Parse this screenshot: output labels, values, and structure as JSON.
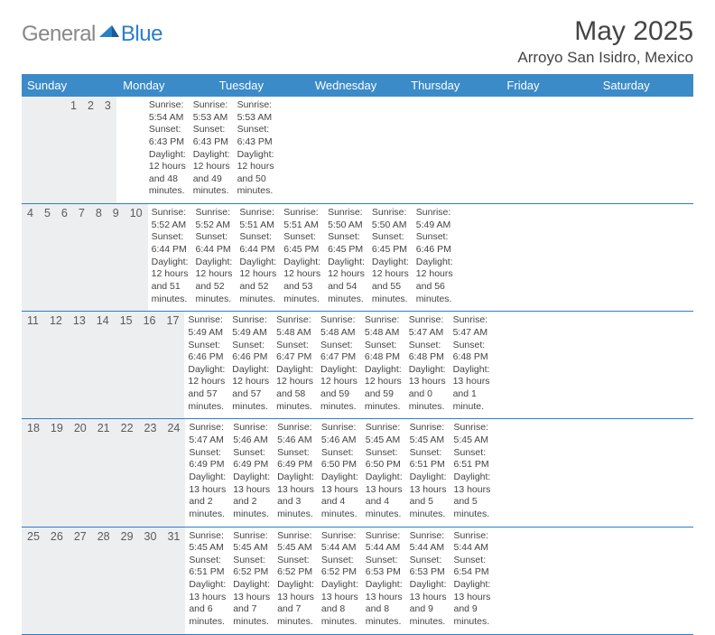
{
  "brand": {
    "text_gray": "General",
    "text_blue": "Blue"
  },
  "title": "May 2025",
  "location": "Arroyo San Isidro, Mexico",
  "colors": {
    "header_bg": "#3b8bc9",
    "header_text": "#ffffff",
    "daynum_bg": "#eceef0",
    "row_border": "#2a7fc9",
    "body_text": "#444444",
    "logo_gray": "#888888",
    "logo_blue": "#2a7fc9",
    "page_bg": "#ffffff"
  },
  "fonts": {
    "title_size_pt": 30,
    "location_size_pt": 17,
    "weekday_size_pt": 13,
    "daynum_size_pt": 12.5,
    "body_size_pt": 10.5
  },
  "weekdays": [
    "Sunday",
    "Monday",
    "Tuesday",
    "Wednesday",
    "Thursday",
    "Friday",
    "Saturday"
  ],
  "weeks": [
    {
      "nums": [
        "",
        "",
        "",
        "",
        "1",
        "2",
        "3"
      ],
      "cells": [
        null,
        null,
        null,
        null,
        {
          "sunrise": "Sunrise: 5:54 AM",
          "sunset": "Sunset: 6:43 PM",
          "day1": "Daylight: 12 hours",
          "day2": "and 48 minutes."
        },
        {
          "sunrise": "Sunrise: 5:53 AM",
          "sunset": "Sunset: 6:43 PM",
          "day1": "Daylight: 12 hours",
          "day2": "and 49 minutes."
        },
        {
          "sunrise": "Sunrise: 5:53 AM",
          "sunset": "Sunset: 6:43 PM",
          "day1": "Daylight: 12 hours",
          "day2": "and 50 minutes."
        }
      ]
    },
    {
      "nums": [
        "4",
        "5",
        "6",
        "7",
        "8",
        "9",
        "10"
      ],
      "cells": [
        {
          "sunrise": "Sunrise: 5:52 AM",
          "sunset": "Sunset: 6:44 PM",
          "day1": "Daylight: 12 hours",
          "day2": "and 51 minutes."
        },
        {
          "sunrise": "Sunrise: 5:52 AM",
          "sunset": "Sunset: 6:44 PM",
          "day1": "Daylight: 12 hours",
          "day2": "and 52 minutes."
        },
        {
          "sunrise": "Sunrise: 5:51 AM",
          "sunset": "Sunset: 6:44 PM",
          "day1": "Daylight: 12 hours",
          "day2": "and 52 minutes."
        },
        {
          "sunrise": "Sunrise: 5:51 AM",
          "sunset": "Sunset: 6:45 PM",
          "day1": "Daylight: 12 hours",
          "day2": "and 53 minutes."
        },
        {
          "sunrise": "Sunrise: 5:50 AM",
          "sunset": "Sunset: 6:45 PM",
          "day1": "Daylight: 12 hours",
          "day2": "and 54 minutes."
        },
        {
          "sunrise": "Sunrise: 5:50 AM",
          "sunset": "Sunset: 6:45 PM",
          "day1": "Daylight: 12 hours",
          "day2": "and 55 minutes."
        },
        {
          "sunrise": "Sunrise: 5:49 AM",
          "sunset": "Sunset: 6:46 PM",
          "day1": "Daylight: 12 hours",
          "day2": "and 56 minutes."
        }
      ]
    },
    {
      "nums": [
        "11",
        "12",
        "13",
        "14",
        "15",
        "16",
        "17"
      ],
      "cells": [
        {
          "sunrise": "Sunrise: 5:49 AM",
          "sunset": "Sunset: 6:46 PM",
          "day1": "Daylight: 12 hours",
          "day2": "and 57 minutes."
        },
        {
          "sunrise": "Sunrise: 5:49 AM",
          "sunset": "Sunset: 6:46 PM",
          "day1": "Daylight: 12 hours",
          "day2": "and 57 minutes."
        },
        {
          "sunrise": "Sunrise: 5:48 AM",
          "sunset": "Sunset: 6:47 PM",
          "day1": "Daylight: 12 hours",
          "day2": "and 58 minutes."
        },
        {
          "sunrise": "Sunrise: 5:48 AM",
          "sunset": "Sunset: 6:47 PM",
          "day1": "Daylight: 12 hours",
          "day2": "and 59 minutes."
        },
        {
          "sunrise": "Sunrise: 5:48 AM",
          "sunset": "Sunset: 6:48 PM",
          "day1": "Daylight: 12 hours",
          "day2": "and 59 minutes."
        },
        {
          "sunrise": "Sunrise: 5:47 AM",
          "sunset": "Sunset: 6:48 PM",
          "day1": "Daylight: 13 hours",
          "day2": "and 0 minutes."
        },
        {
          "sunrise": "Sunrise: 5:47 AM",
          "sunset": "Sunset: 6:48 PM",
          "day1": "Daylight: 13 hours",
          "day2": "and 1 minute."
        }
      ]
    },
    {
      "nums": [
        "18",
        "19",
        "20",
        "21",
        "22",
        "23",
        "24"
      ],
      "cells": [
        {
          "sunrise": "Sunrise: 5:47 AM",
          "sunset": "Sunset: 6:49 PM",
          "day1": "Daylight: 13 hours",
          "day2": "and 2 minutes."
        },
        {
          "sunrise": "Sunrise: 5:46 AM",
          "sunset": "Sunset: 6:49 PM",
          "day1": "Daylight: 13 hours",
          "day2": "and 2 minutes."
        },
        {
          "sunrise": "Sunrise: 5:46 AM",
          "sunset": "Sunset: 6:49 PM",
          "day1": "Daylight: 13 hours",
          "day2": "and 3 minutes."
        },
        {
          "sunrise": "Sunrise: 5:46 AM",
          "sunset": "Sunset: 6:50 PM",
          "day1": "Daylight: 13 hours",
          "day2": "and 4 minutes."
        },
        {
          "sunrise": "Sunrise: 5:45 AM",
          "sunset": "Sunset: 6:50 PM",
          "day1": "Daylight: 13 hours",
          "day2": "and 4 minutes."
        },
        {
          "sunrise": "Sunrise: 5:45 AM",
          "sunset": "Sunset: 6:51 PM",
          "day1": "Daylight: 13 hours",
          "day2": "and 5 minutes."
        },
        {
          "sunrise": "Sunrise: 5:45 AM",
          "sunset": "Sunset: 6:51 PM",
          "day1": "Daylight: 13 hours",
          "day2": "and 5 minutes."
        }
      ]
    },
    {
      "nums": [
        "25",
        "26",
        "27",
        "28",
        "29",
        "30",
        "31"
      ],
      "cells": [
        {
          "sunrise": "Sunrise: 5:45 AM",
          "sunset": "Sunset: 6:51 PM",
          "day1": "Daylight: 13 hours",
          "day2": "and 6 minutes."
        },
        {
          "sunrise": "Sunrise: 5:45 AM",
          "sunset": "Sunset: 6:52 PM",
          "day1": "Daylight: 13 hours",
          "day2": "and 7 minutes."
        },
        {
          "sunrise": "Sunrise: 5:45 AM",
          "sunset": "Sunset: 6:52 PM",
          "day1": "Daylight: 13 hours",
          "day2": "and 7 minutes."
        },
        {
          "sunrise": "Sunrise: 5:44 AM",
          "sunset": "Sunset: 6:52 PM",
          "day1": "Daylight: 13 hours",
          "day2": "and 8 minutes."
        },
        {
          "sunrise": "Sunrise: 5:44 AM",
          "sunset": "Sunset: 6:53 PM",
          "day1": "Daylight: 13 hours",
          "day2": "and 8 minutes."
        },
        {
          "sunrise": "Sunrise: 5:44 AM",
          "sunset": "Sunset: 6:53 PM",
          "day1": "Daylight: 13 hours",
          "day2": "and 9 minutes."
        },
        {
          "sunrise": "Sunrise: 5:44 AM",
          "sunset": "Sunset: 6:54 PM",
          "day1": "Daylight: 13 hours",
          "day2": "and 9 minutes."
        }
      ]
    }
  ]
}
